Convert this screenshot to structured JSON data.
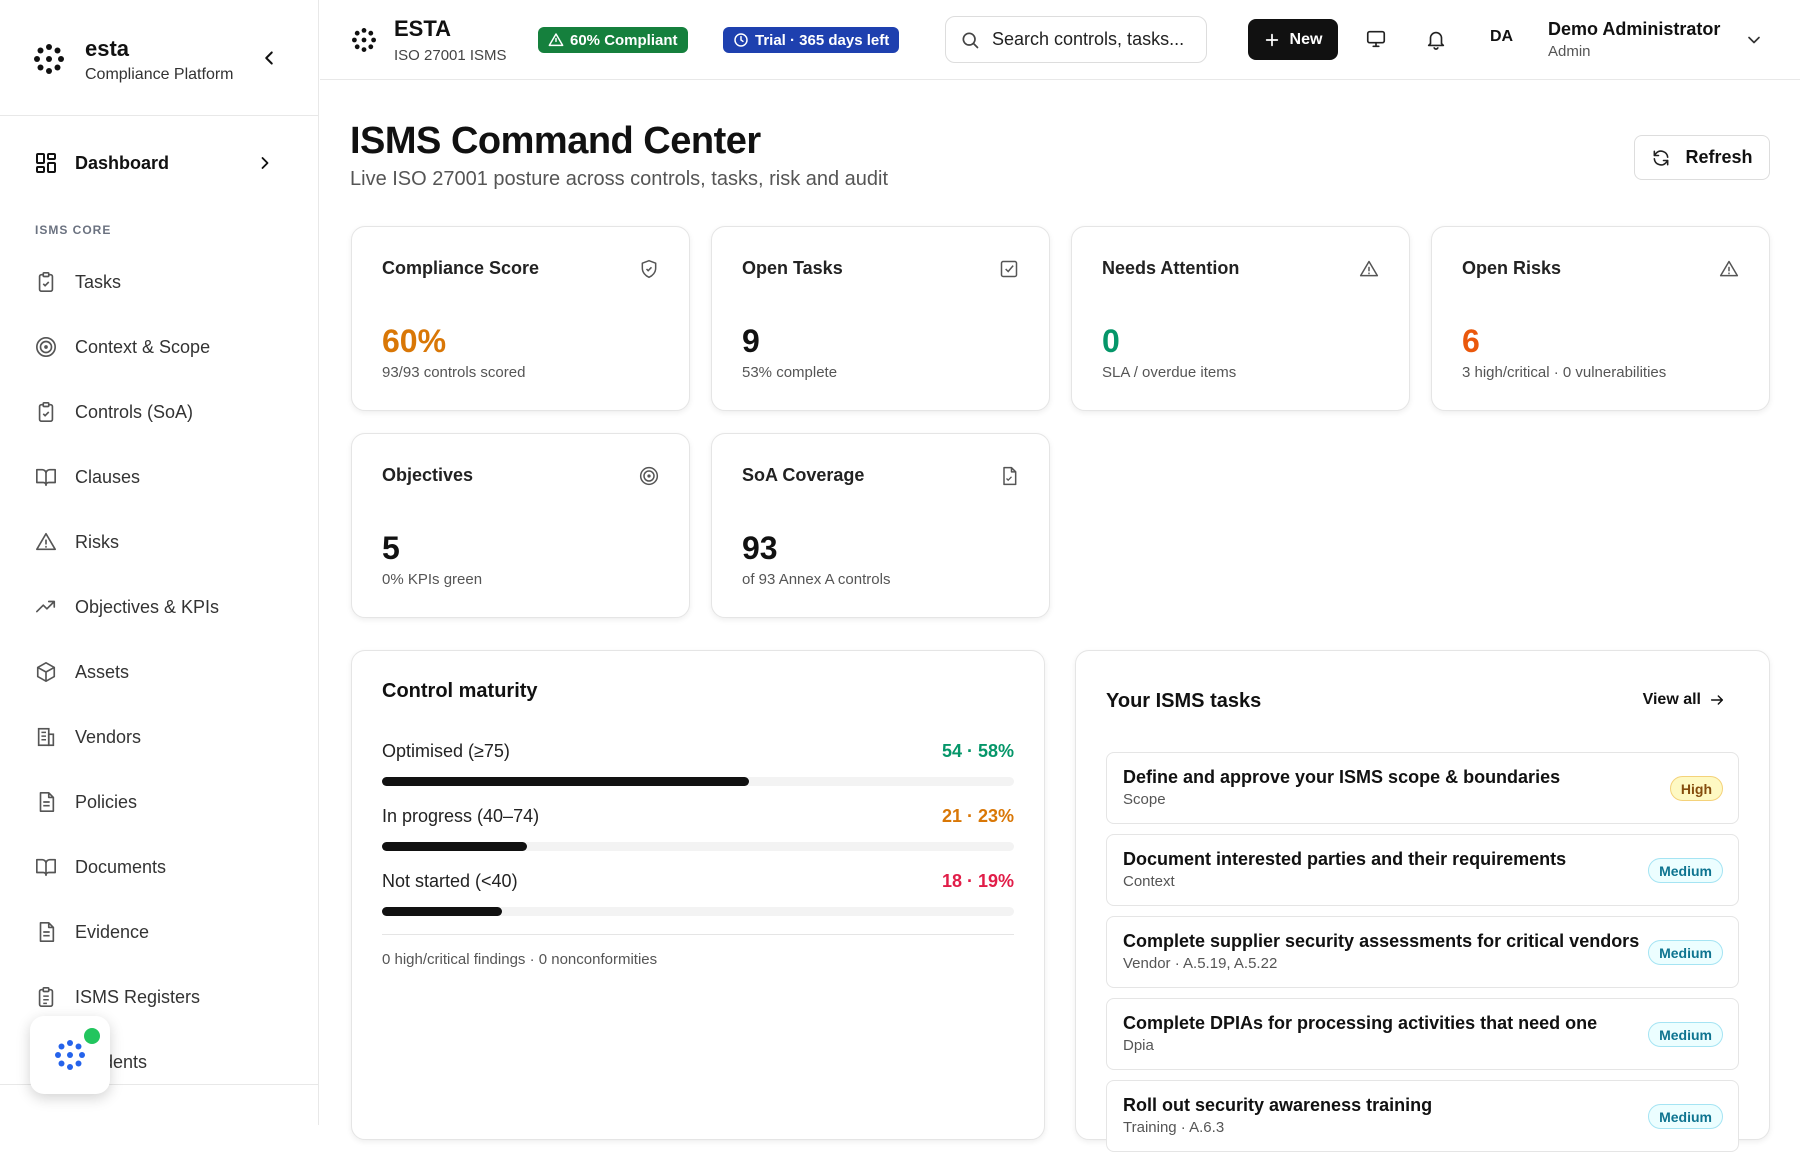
{
  "sidebar": {
    "brand_name": "esta",
    "brand_sub": "Compliance Platform",
    "dashboard_label": "Dashboard",
    "section_label": "ISMS CORE",
    "items": [
      {
        "label": "Tasks",
        "icon": "clipboard-icon"
      },
      {
        "label": "Context & Scope",
        "icon": "target-icon"
      },
      {
        "label": "Controls (SoA)",
        "icon": "clipboard-check-icon"
      },
      {
        "label": "Clauses",
        "icon": "book-icon"
      },
      {
        "label": "Risks",
        "icon": "warning-icon"
      },
      {
        "label": "Objectives & KPIs",
        "icon": "trending-up-icon"
      },
      {
        "label": "Assets",
        "icon": "box-icon"
      },
      {
        "label": "Vendors",
        "icon": "building-icon"
      },
      {
        "label": "Policies",
        "icon": "file-text-icon"
      },
      {
        "label": "Documents",
        "icon": "book-icon"
      },
      {
        "label": "Evidence",
        "icon": "file-text-icon"
      },
      {
        "label": "ISMS Registers",
        "icon": "list-icon"
      },
      {
        "label": "Incidents",
        "icon": "alert-icon"
      }
    ]
  },
  "topbar": {
    "title": "ESTA",
    "subtitle": "ISO 27001 ISMS",
    "compliance_badge": "60% Compliant",
    "trial_badge": "Trial · 365 days left",
    "search_placeholder": "Search controls, tasks...",
    "new_label": "New",
    "avatar_initials": "DA",
    "user_name": "Demo Administrator",
    "user_role": "Admin"
  },
  "page": {
    "title": "ISMS Command Center",
    "subtitle": "Live ISO 27001 posture across controls, tasks, risk and audit",
    "refresh_label": "Refresh"
  },
  "cards": [
    {
      "title": "Compliance Score",
      "value": "60%",
      "sub": "93/93 controls scored",
      "color": "#d97706",
      "icon": "shield-icon"
    },
    {
      "title": "Open Tasks",
      "value": "9",
      "sub": "53% complete",
      "color": "#111111",
      "icon": "checkbox-icon"
    },
    {
      "title": "Needs Attention",
      "value": "0",
      "sub": "SLA / overdue items",
      "color": "#059669",
      "icon": "warning-icon"
    },
    {
      "title": "Open Risks",
      "value": "6",
      "sub": "3 high/critical · 0 vulnerabilities",
      "color": "#ea580c",
      "icon": "warning-icon"
    },
    {
      "title": "Objectives",
      "value": "5",
      "sub": "0% KPIs green",
      "color": "#111111",
      "icon": "target-icon"
    },
    {
      "title": "SoA Coverage",
      "value": "93",
      "sub": "of 93 Annex A controls",
      "color": "#111111",
      "icon": "file-icon"
    }
  ],
  "maturity": {
    "title": "Control maturity",
    "rows": [
      {
        "label": "Optimised (≥75)",
        "value": "54 · 58%",
        "percent": 58,
        "color": "#059669"
      },
      {
        "label": "In progress (40–74)",
        "value": "21 · 23%",
        "percent": 23,
        "color": "#d97706"
      },
      {
        "label": "Not started (<40)",
        "value": "18 · 19%",
        "percent": 19,
        "color": "#e11d48"
      }
    ],
    "footer": "0 high/critical findings · 0 nonconformities"
  },
  "tasks": {
    "title": "Your ISMS tasks",
    "view_all": "View all",
    "items": [
      {
        "title": "Define and approve your ISMS scope & boundaries",
        "sub": "Scope",
        "priority": "High"
      },
      {
        "title": "Document interested parties and their requirements",
        "sub": "Context",
        "priority": "Medium"
      },
      {
        "title": "Complete supplier security assessments for critical vendors",
        "sub": "Vendor · A.5.19, A.5.22",
        "priority": "Medium"
      },
      {
        "title": "Complete DPIAs for processing activities that need one",
        "sub": "Dpia",
        "priority": "Medium"
      },
      {
        "title": "Roll out security awareness training",
        "sub": "Training · A.6.3",
        "priority": "Medium"
      }
    ]
  },
  "colors": {
    "accent_dark": "#111111",
    "success": "#15803d",
    "trial": "#1e40af"
  }
}
